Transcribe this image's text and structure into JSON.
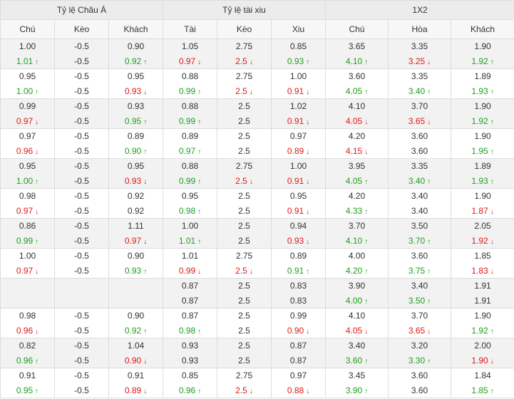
{
  "colors": {
    "up": "#1f9e1f",
    "down": "#e01919",
    "text": "#333333"
  },
  "header": {
    "groups": [
      "Tỷ lệ Châu Á",
      "Tỷ lệ tài xiu",
      "1X2"
    ],
    "columns": [
      "Chú",
      "Kèo",
      "Khách",
      "Tài",
      "Kèo",
      "Xiu",
      "Chú",
      "Hòa",
      "Khách"
    ]
  },
  "rows": [
    {
      "cells": [
        [
          {
            "v": "1.00",
            "d": ""
          },
          {
            "v": "1.01",
            "d": "up"
          }
        ],
        [
          {
            "v": "-0.5",
            "d": ""
          },
          {
            "v": "-0.5",
            "d": ""
          }
        ],
        [
          {
            "v": "0.90",
            "d": ""
          },
          {
            "v": "0.92",
            "d": "up"
          }
        ],
        [
          {
            "v": "1.05",
            "d": ""
          },
          {
            "v": "0.97",
            "d": "down"
          }
        ],
        [
          {
            "v": "2.75",
            "d": ""
          },
          {
            "v": "2.5",
            "d": "down"
          }
        ],
        [
          {
            "v": "0.85",
            "d": ""
          },
          {
            "v": "0.93",
            "d": "up"
          }
        ],
        [
          {
            "v": "3.65",
            "d": ""
          },
          {
            "v": "4.10",
            "d": "up"
          }
        ],
        [
          {
            "v": "3.35",
            "d": ""
          },
          {
            "v": "3.25",
            "d": "down"
          }
        ],
        [
          {
            "v": "1.90",
            "d": ""
          },
          {
            "v": "1.92",
            "d": "up"
          }
        ]
      ]
    },
    {
      "cells": [
        [
          {
            "v": "0.95",
            "d": ""
          },
          {
            "v": "1.00",
            "d": "up"
          }
        ],
        [
          {
            "v": "-0.5",
            "d": ""
          },
          {
            "v": "-0.5",
            "d": ""
          }
        ],
        [
          {
            "v": "0.95",
            "d": ""
          },
          {
            "v": "0.93",
            "d": "down"
          }
        ],
        [
          {
            "v": "0.88",
            "d": ""
          },
          {
            "v": "0.99",
            "d": "up"
          }
        ],
        [
          {
            "v": "2.75",
            "d": ""
          },
          {
            "v": "2.5",
            "d": "down"
          }
        ],
        [
          {
            "v": "1.00",
            "d": ""
          },
          {
            "v": "0.91",
            "d": "down"
          }
        ],
        [
          {
            "v": "3.60",
            "d": ""
          },
          {
            "v": "4.05",
            "d": "up"
          }
        ],
        [
          {
            "v": "3.35",
            "d": ""
          },
          {
            "v": "3.40",
            "d": "up"
          }
        ],
        [
          {
            "v": "1.89",
            "d": ""
          },
          {
            "v": "1.93",
            "d": "up"
          }
        ]
      ]
    },
    {
      "cells": [
        [
          {
            "v": "0.99",
            "d": ""
          },
          {
            "v": "0.97",
            "d": "down"
          }
        ],
        [
          {
            "v": "-0.5",
            "d": ""
          },
          {
            "v": "-0.5",
            "d": ""
          }
        ],
        [
          {
            "v": "0.93",
            "d": ""
          },
          {
            "v": "0.95",
            "d": "up"
          }
        ],
        [
          {
            "v": "0.88",
            "d": ""
          },
          {
            "v": "0.99",
            "d": "up"
          }
        ],
        [
          {
            "v": "2.5",
            "d": ""
          },
          {
            "v": "2.5",
            "d": ""
          }
        ],
        [
          {
            "v": "1.02",
            "d": ""
          },
          {
            "v": "0.91",
            "d": "down"
          }
        ],
        [
          {
            "v": "4.10",
            "d": ""
          },
          {
            "v": "4.05",
            "d": "down"
          }
        ],
        [
          {
            "v": "3.70",
            "d": ""
          },
          {
            "v": "3.65",
            "d": "down"
          }
        ],
        [
          {
            "v": "1.90",
            "d": ""
          },
          {
            "v": "1.92",
            "d": "up"
          }
        ]
      ]
    },
    {
      "cells": [
        [
          {
            "v": "0.97",
            "d": ""
          },
          {
            "v": "0.96",
            "d": "down"
          }
        ],
        [
          {
            "v": "-0.5",
            "d": ""
          },
          {
            "v": "-0.5",
            "d": ""
          }
        ],
        [
          {
            "v": "0.89",
            "d": ""
          },
          {
            "v": "0.90",
            "d": "up"
          }
        ],
        [
          {
            "v": "0.89",
            "d": ""
          },
          {
            "v": "0.97",
            "d": "up"
          }
        ],
        [
          {
            "v": "2.5",
            "d": ""
          },
          {
            "v": "2.5",
            "d": ""
          }
        ],
        [
          {
            "v": "0.97",
            "d": ""
          },
          {
            "v": "0.89",
            "d": "down"
          }
        ],
        [
          {
            "v": "4.20",
            "d": ""
          },
          {
            "v": "4.15",
            "d": "down"
          }
        ],
        [
          {
            "v": "3.60",
            "d": ""
          },
          {
            "v": "3.60",
            "d": ""
          }
        ],
        [
          {
            "v": "1.90",
            "d": ""
          },
          {
            "v": "1.95",
            "d": "up"
          }
        ]
      ]
    },
    {
      "cells": [
        [
          {
            "v": "0.95",
            "d": ""
          },
          {
            "v": "1.00",
            "d": "up"
          }
        ],
        [
          {
            "v": "-0.5",
            "d": ""
          },
          {
            "v": "-0.5",
            "d": ""
          }
        ],
        [
          {
            "v": "0.95",
            "d": ""
          },
          {
            "v": "0.93",
            "d": "down"
          }
        ],
        [
          {
            "v": "0.88",
            "d": ""
          },
          {
            "v": "0.99",
            "d": "up"
          }
        ],
        [
          {
            "v": "2.75",
            "d": ""
          },
          {
            "v": "2.5",
            "d": "down"
          }
        ],
        [
          {
            "v": "1.00",
            "d": ""
          },
          {
            "v": "0.91",
            "d": "down"
          }
        ],
        [
          {
            "v": "3.95",
            "d": ""
          },
          {
            "v": "4.05",
            "d": "up"
          }
        ],
        [
          {
            "v": "3.35",
            "d": ""
          },
          {
            "v": "3.40",
            "d": "up"
          }
        ],
        [
          {
            "v": "1.89",
            "d": ""
          },
          {
            "v": "1.93",
            "d": "up"
          }
        ]
      ]
    },
    {
      "cells": [
        [
          {
            "v": "0.98",
            "d": ""
          },
          {
            "v": "0.97",
            "d": "down"
          }
        ],
        [
          {
            "v": "-0.5",
            "d": ""
          },
          {
            "v": "-0.5",
            "d": ""
          }
        ],
        [
          {
            "v": "0.92",
            "d": ""
          },
          {
            "v": "0.92",
            "d": ""
          }
        ],
        [
          {
            "v": "0.95",
            "d": ""
          },
          {
            "v": "0.98",
            "d": "up"
          }
        ],
        [
          {
            "v": "2.5",
            "d": ""
          },
          {
            "v": "2.5",
            "d": ""
          }
        ],
        [
          {
            "v": "0.95",
            "d": ""
          },
          {
            "v": "0.91",
            "d": "down"
          }
        ],
        [
          {
            "v": "4.20",
            "d": ""
          },
          {
            "v": "4.33",
            "d": "up"
          }
        ],
        [
          {
            "v": "3.40",
            "d": ""
          },
          {
            "v": "3.40",
            "d": ""
          }
        ],
        [
          {
            "v": "1.90",
            "d": ""
          },
          {
            "v": "1.87",
            "d": "down"
          }
        ]
      ]
    },
    {
      "cells": [
        [
          {
            "v": "0.86",
            "d": ""
          },
          {
            "v": "0.99",
            "d": "up"
          }
        ],
        [
          {
            "v": "-0.5",
            "d": ""
          },
          {
            "v": "-0.5",
            "d": ""
          }
        ],
        [
          {
            "v": "1.11",
            "d": ""
          },
          {
            "v": "0.97",
            "d": "down"
          }
        ],
        [
          {
            "v": "1.00",
            "d": ""
          },
          {
            "v": "1.01",
            "d": "up"
          }
        ],
        [
          {
            "v": "2.5",
            "d": ""
          },
          {
            "v": "2.5",
            "d": ""
          }
        ],
        [
          {
            "v": "0.94",
            "d": ""
          },
          {
            "v": "0.93",
            "d": "down"
          }
        ],
        [
          {
            "v": "3.70",
            "d": ""
          },
          {
            "v": "4.10",
            "d": "up"
          }
        ],
        [
          {
            "v": "3.50",
            "d": ""
          },
          {
            "v": "3.70",
            "d": "up"
          }
        ],
        [
          {
            "v": "2.05",
            "d": ""
          },
          {
            "v": "1.92",
            "d": "down"
          }
        ]
      ]
    },
    {
      "cells": [
        [
          {
            "v": "1.00",
            "d": ""
          },
          {
            "v": "0.97",
            "d": "down"
          }
        ],
        [
          {
            "v": "-0.5",
            "d": ""
          },
          {
            "v": "-0.5",
            "d": ""
          }
        ],
        [
          {
            "v": "0.90",
            "d": ""
          },
          {
            "v": "0.93",
            "d": "up"
          }
        ],
        [
          {
            "v": "1.01",
            "d": ""
          },
          {
            "v": "0.99",
            "d": "down"
          }
        ],
        [
          {
            "v": "2.75",
            "d": ""
          },
          {
            "v": "2.5",
            "d": "down"
          }
        ],
        [
          {
            "v": "0.89",
            "d": ""
          },
          {
            "v": "0.91",
            "d": "up"
          }
        ],
        [
          {
            "v": "4.00",
            "d": ""
          },
          {
            "v": "4.20",
            "d": "up"
          }
        ],
        [
          {
            "v": "3.60",
            "d": ""
          },
          {
            "v": "3.75",
            "d": "up"
          }
        ],
        [
          {
            "v": "1.85",
            "d": ""
          },
          {
            "v": "1.83",
            "d": "down"
          }
        ]
      ]
    },
    {
      "cells": [
        [],
        [],
        [],
        [
          {
            "v": "0.87",
            "d": ""
          },
          {
            "v": "0.87",
            "d": ""
          }
        ],
        [
          {
            "v": "2.5",
            "d": ""
          },
          {
            "v": "2.5",
            "d": ""
          }
        ],
        [
          {
            "v": "0.83",
            "d": ""
          },
          {
            "v": "0.83",
            "d": ""
          }
        ],
        [
          {
            "v": "3.90",
            "d": ""
          },
          {
            "v": "4.00",
            "d": "up"
          }
        ],
        [
          {
            "v": "3.40",
            "d": ""
          },
          {
            "v": "3.50",
            "d": "up"
          }
        ],
        [
          {
            "v": "1.91",
            "d": ""
          },
          {
            "v": "1.91",
            "d": ""
          }
        ]
      ]
    },
    {
      "cells": [
        [
          {
            "v": "0.98",
            "d": ""
          },
          {
            "v": "0.96",
            "d": "down"
          }
        ],
        [
          {
            "v": "-0.5",
            "d": ""
          },
          {
            "v": "-0.5",
            "d": ""
          }
        ],
        [
          {
            "v": "0.90",
            "d": ""
          },
          {
            "v": "0.92",
            "d": "up"
          }
        ],
        [
          {
            "v": "0.87",
            "d": ""
          },
          {
            "v": "0.98",
            "d": "up"
          }
        ],
        [
          {
            "v": "2.5",
            "d": ""
          },
          {
            "v": "2.5",
            "d": ""
          }
        ],
        [
          {
            "v": "0.99",
            "d": ""
          },
          {
            "v": "0.90",
            "d": "down"
          }
        ],
        [
          {
            "v": "4.10",
            "d": ""
          },
          {
            "v": "4.05",
            "d": "down"
          }
        ],
        [
          {
            "v": "3.70",
            "d": ""
          },
          {
            "v": "3.65",
            "d": "down"
          }
        ],
        [
          {
            "v": "1.90",
            "d": ""
          },
          {
            "v": "1.92",
            "d": "up"
          }
        ]
      ]
    },
    {
      "cells": [
        [
          {
            "v": "0.82",
            "d": ""
          },
          {
            "v": "0.96",
            "d": "up"
          }
        ],
        [
          {
            "v": "-0.5",
            "d": ""
          },
          {
            "v": "-0.5",
            "d": ""
          }
        ],
        [
          {
            "v": "1.04",
            "d": ""
          },
          {
            "v": "0.90",
            "d": "down"
          }
        ],
        [
          {
            "v": "0.93",
            "d": ""
          },
          {
            "v": "0.93",
            "d": ""
          }
        ],
        [
          {
            "v": "2.5",
            "d": ""
          },
          {
            "v": "2.5",
            "d": ""
          }
        ],
        [
          {
            "v": "0.87",
            "d": ""
          },
          {
            "v": "0.87",
            "d": ""
          }
        ],
        [
          {
            "v": "3.40",
            "d": ""
          },
          {
            "v": "3.60",
            "d": "up"
          }
        ],
        [
          {
            "v": "3.20",
            "d": ""
          },
          {
            "v": "3.30",
            "d": "up"
          }
        ],
        [
          {
            "v": "2.00",
            "d": ""
          },
          {
            "v": "1.90",
            "d": "down"
          }
        ]
      ]
    },
    {
      "cells": [
        [
          {
            "v": "0.91",
            "d": ""
          },
          {
            "v": "0.95",
            "d": "up"
          }
        ],
        [
          {
            "v": "-0.5",
            "d": ""
          },
          {
            "v": "-0.5",
            "d": ""
          }
        ],
        [
          {
            "v": "0.91",
            "d": ""
          },
          {
            "v": "0.89",
            "d": "down"
          }
        ],
        [
          {
            "v": "0.85",
            "d": ""
          },
          {
            "v": "0.96",
            "d": "up"
          }
        ],
        [
          {
            "v": "2.75",
            "d": ""
          },
          {
            "v": "2.5",
            "d": "down"
          }
        ],
        [
          {
            "v": "0.97",
            "d": ""
          },
          {
            "v": "0.88",
            "d": "down"
          }
        ],
        [
          {
            "v": "3.45",
            "d": ""
          },
          {
            "v": "3.90",
            "d": "up"
          }
        ],
        [
          {
            "v": "3.60",
            "d": ""
          },
          {
            "v": "3.60",
            "d": ""
          }
        ],
        [
          {
            "v": "1.84",
            "d": ""
          },
          {
            "v": "1.85",
            "d": "up"
          }
        ]
      ]
    }
  ]
}
